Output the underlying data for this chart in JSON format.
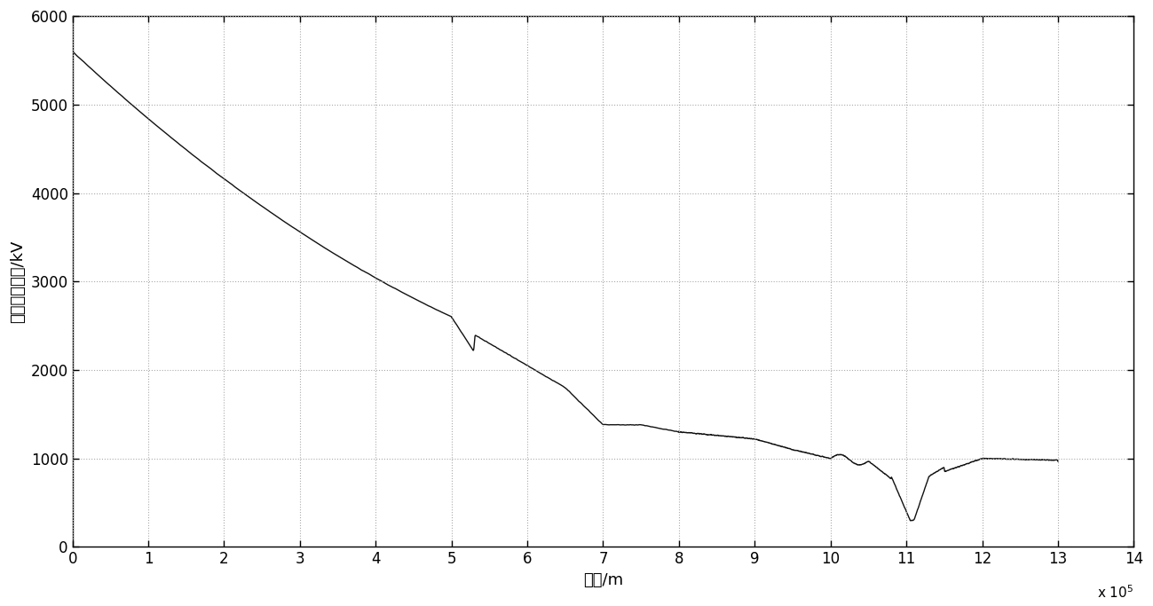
{
  "xlabel": "距离/m",
  "ylabel": "定位函数幅値/kV",
  "xlim": [
    0,
    1400000
  ],
  "ylim": [
    0,
    6000
  ],
  "xtick_labels": [
    "0",
    "1",
    "2",
    "3",
    "4",
    "5",
    "6",
    "7",
    "8",
    "9",
    "10",
    "11",
    "12",
    "13",
    "14"
  ],
  "ytick_labels": [
    "0",
    "1000",
    "2000",
    "3000",
    "4000",
    "5000",
    "6000"
  ],
  "line_color": "#111111",
  "line_width": 1.0,
  "grid_color": "#aaaaaa",
  "background_color": "#ffffff",
  "scale_text": "x 10⁵"
}
